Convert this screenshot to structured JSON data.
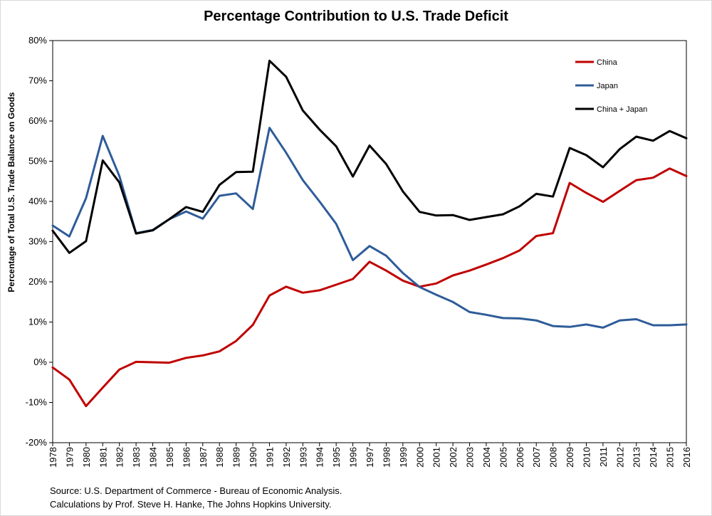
{
  "chart_data": {
    "type": "line",
    "title": "Percentage Contribution to U.S. Trade Deficit",
    "xlabel": "",
    "ylabel": "Percentage of Total U.S. Trade Balance on Goods",
    "ylim": [
      -20,
      80
    ],
    "yticks": [
      "-20%",
      "-10%",
      "0%",
      "10%",
      "20%",
      "30%",
      "40%",
      "50%",
      "60%",
      "70%",
      "80%"
    ],
    "ytick_values": [
      -20,
      -10,
      0,
      10,
      20,
      30,
      40,
      50,
      60,
      70,
      80
    ],
    "grid": false,
    "legend_position": "top-right",
    "categories": [
      "1978",
      "1979",
      "1980",
      "1981",
      "1982",
      "1983",
      "1984",
      "1985",
      "1986",
      "1987",
      "1988",
      "1989",
      "1990",
      "1991",
      "1992",
      "1993",
      "1994",
      "1995",
      "1996",
      "1997",
      "1998",
      "1999",
      "2000",
      "2001",
      "2002",
      "2003",
      "2004",
      "2005",
      "2006",
      "2007",
      "2008",
      "2009",
      "2010",
      "2011",
      "2012",
      "2013",
      "2014",
      "2015",
      "2016"
    ],
    "series": [
      {
        "name": "China",
        "color": "#c00000",
        "values": [
          -1.3,
          -4.3,
          -10.9,
          -6.3,
          -1.8,
          0.1,
          0.0,
          -0.1,
          1.1,
          1.7,
          2.7,
          5.3,
          9.3,
          16.6,
          18.8,
          17.3,
          17.9,
          19.3,
          20.7,
          25.0,
          22.8,
          20.3,
          18.8,
          19.6,
          21.6,
          22.8,
          24.3,
          25.9,
          27.8,
          31.4,
          32.1,
          44.6,
          42.1,
          39.9,
          42.6,
          45.3,
          45.9,
          48.2,
          46.3
        ]
      },
      {
        "name": "Japan",
        "color": "#2e5c99",
        "values": [
          34.0,
          31.3,
          40.8,
          56.3,
          46.3,
          32.1,
          32.9,
          35.6,
          37.5,
          35.7,
          41.4,
          42.0,
          38.1,
          58.3,
          52.1,
          45.3,
          40.0,
          34.4,
          25.4,
          28.9,
          26.5,
          22.2,
          18.7,
          16.8,
          15.0,
          12.5,
          11.8,
          11.0,
          10.9,
          10.4,
          9.0,
          8.8,
          9.4,
          8.6,
          10.4,
          10.7,
          9.2,
          9.2,
          9.4
        ]
      },
      {
        "name": "China + Japan",
        "color": "#000000",
        "values": [
          32.7,
          27.2,
          30.1,
          50.2,
          44.7,
          32.0,
          32.8,
          35.6,
          38.6,
          37.4,
          44.1,
          47.3,
          47.4,
          75.0,
          71.0,
          62.6,
          57.9,
          53.7,
          46.2,
          53.9,
          49.3,
          42.5,
          37.4,
          36.5,
          36.6,
          35.4,
          36.1,
          36.8,
          38.8,
          41.9,
          41.2,
          53.3,
          51.5,
          48.5,
          53.0,
          56.1,
          55.1,
          57.5,
          55.7
        ]
      }
    ]
  },
  "source": {
    "line1": "Source: U.S. Department of Commerce - Bureau of Economic Analysis.",
    "line2": "Calculations by Prof. Steve H. Hanke, The Johns Hopkins University."
  }
}
